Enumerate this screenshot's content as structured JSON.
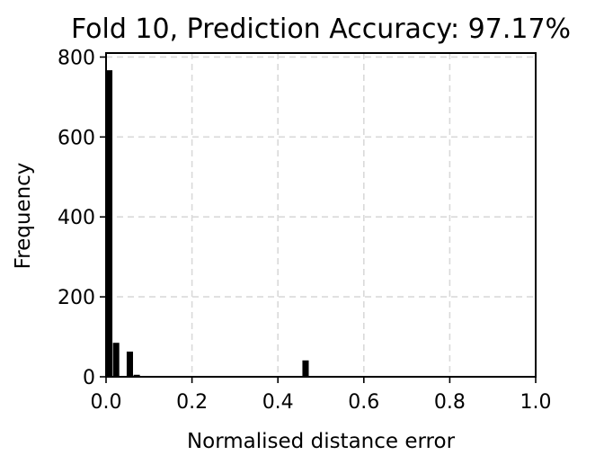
{
  "chart_data": {
    "type": "bar",
    "title": "Fold 10, Prediction Accuracy: 97.17%",
    "xlabel": "Normalised distance error",
    "ylabel": "Frequency",
    "xlim": [
      0,
      1
    ],
    "ylim": [
      0,
      810
    ],
    "x_ticks": [
      0.0,
      0.2,
      0.4,
      0.6,
      0.8,
      1.0
    ],
    "x_tick_labels": [
      "0.0",
      "0.2",
      "0.4",
      "0.6",
      "0.8",
      "1.0"
    ],
    "y_ticks": [
      0,
      200,
      400,
      600,
      800
    ],
    "y_tick_labels": [
      "0",
      "200",
      "400",
      "600",
      "800"
    ],
    "grid": true,
    "bar_color": "#000000",
    "bins": [
      {
        "x0": 0.0,
        "x1": 0.016,
        "value": 767
      },
      {
        "x0": 0.016,
        "x1": 0.032,
        "value": 85
      },
      {
        "x0": 0.032,
        "x1": 0.048,
        "value": 2
      },
      {
        "x0": 0.048,
        "x1": 0.064,
        "value": 63
      },
      {
        "x0": 0.064,
        "x1": 0.08,
        "value": 5
      },
      {
        "x0": 0.08,
        "x1": 0.096,
        "value": 2
      },
      {
        "x0": 0.457,
        "x1": 0.473,
        "value": 41
      }
    ]
  }
}
